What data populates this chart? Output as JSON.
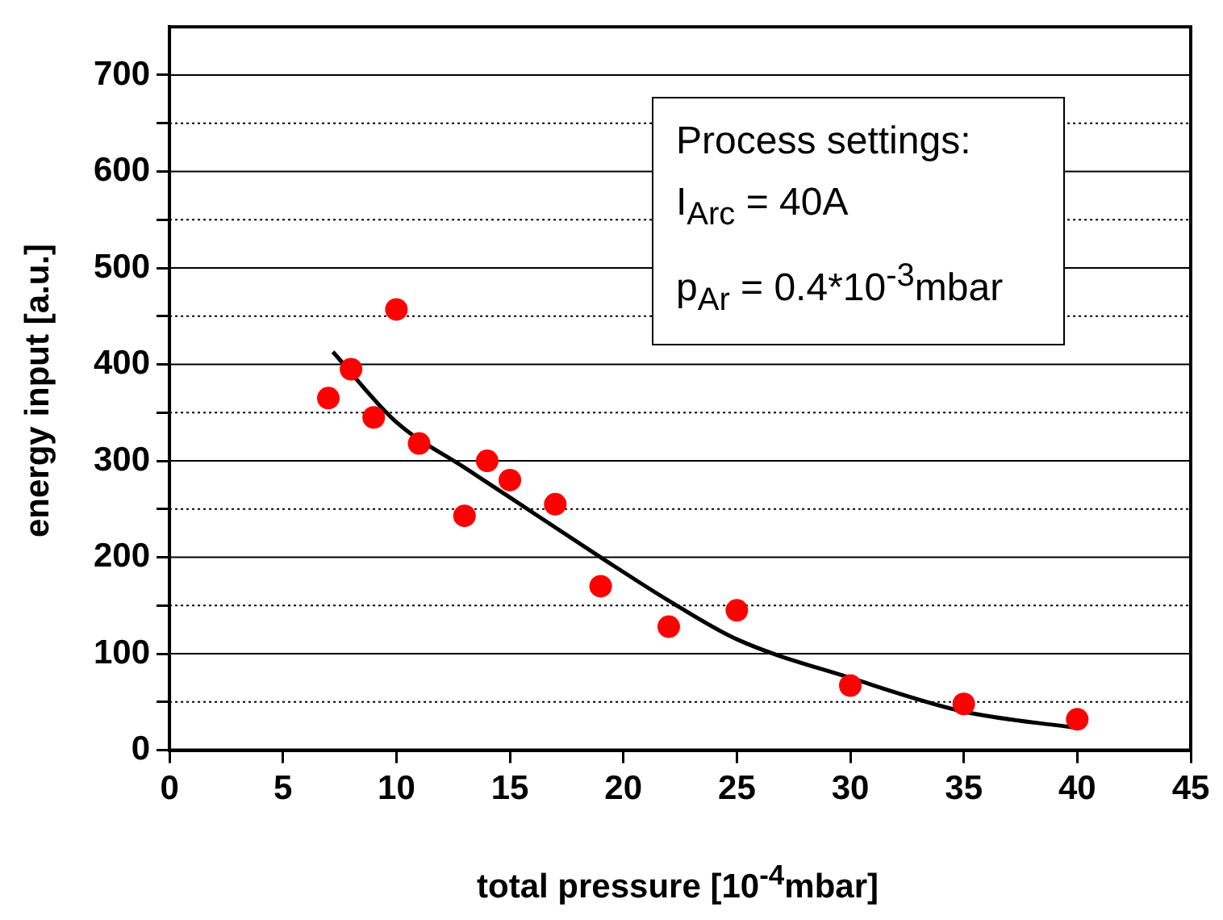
{
  "chart_data": {
    "type": "scatter",
    "xlabel": "total pressure [10$^{-4}$mbar]",
    "ylabel": "energy input [a.u.]",
    "annotations": [
      "Process settings:",
      "I$_{Arc}$ = 40A",
      "p$_{Ar}$ = 0.4*10$^{-3}$mbar"
    ],
    "xlim": [
      0,
      45
    ],
    "xticks": [
      0,
      5,
      10,
      15,
      20,
      25,
      30,
      35,
      40,
      45
    ],
    "ylim": [
      0,
      750
    ],
    "yticks": [
      0,
      {
        "value": 50,
        "label": null
      },
      100,
      {
        "value": 150,
        "label": null
      },
      200,
      {
        "value": 250,
        "label": null
      },
      300,
      {
        "value": 350,
        "label": null
      },
      400,
      {
        "value": 450,
        "label": null
      },
      500,
      {
        "value": 550,
        "label": null
      },
      600,
      {
        "value": 650,
        "label": null
      },
      700
    ],
    "grid": "y",
    "legend": false,
    "series": [
      {
        "type": "scatter",
        "color": "#ff0000",
        "marker": "circle",
        "x": [
          7,
          8,
          9,
          10,
          11,
          13,
          14,
          15,
          17,
          19,
          22,
          25,
          30,
          35,
          40
        ],
        "values": [
          365,
          395,
          345,
          457,
          318,
          243,
          300,
          280,
          255,
          170,
          128,
          145,
          67,
          48,
          32
        ]
      },
      {
        "type": "line",
        "color": "#000000",
        "marker": "none",
        "line_style": "solid",
        "x": [
          7.2,
          10,
          13,
          15,
          19,
          22,
          25,
          30,
          35,
          40
        ],
        "values": [
          413,
          340,
          293,
          262,
          200,
          155,
          115,
          75,
          40,
          23
        ]
      }
    ]
  }
}
